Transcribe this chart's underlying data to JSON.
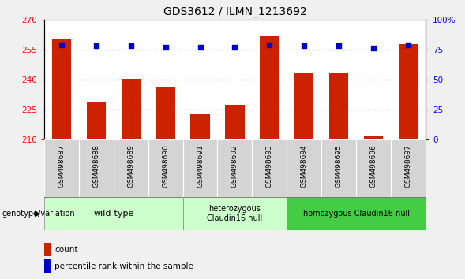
{
  "title": "GDS3612 / ILMN_1213692",
  "samples": [
    "GSM498687",
    "GSM498688",
    "GSM498689",
    "GSM498690",
    "GSM498691",
    "GSM498692",
    "GSM498693",
    "GSM498694",
    "GSM498695",
    "GSM498696",
    "GSM498697"
  ],
  "bar_values": [
    260.5,
    229.0,
    240.5,
    236.0,
    222.5,
    227.5,
    261.5,
    243.5,
    243.0,
    211.5,
    257.5
  ],
  "bar_color": "#cc2200",
  "dot_values": [
    79,
    78,
    78,
    77,
    77,
    77,
    79,
    78,
    78,
    76,
    79
  ],
  "dot_color": "#0000cc",
  "ylim_left": [
    210,
    270
  ],
  "ylim_right": [
    0,
    100
  ],
  "yticks_left": [
    210,
    225,
    240,
    255,
    270
  ],
  "yticks_right": [
    0,
    25,
    50,
    75,
    100
  ],
  "yticklabels_right": [
    "0",
    "25",
    "50",
    "75",
    "100%"
  ],
  "groups": [
    {
      "label": "wild-type",
      "start": 0,
      "end": 3,
      "color": "#ccffcc"
    },
    {
      "label": "heterozygous\nClaudin16 null",
      "start": 4,
      "end": 6,
      "color": "#ccffcc"
    },
    {
      "label": "homozygous Claudin16 null",
      "start": 7,
      "end": 10,
      "color": "#44dd44"
    }
  ],
  "genotype_label": "genotype/variation",
  "legend_count_label": "count",
  "legend_pct_label": "percentile rank within the sample",
  "bar_width": 0.55,
  "plot_bg": "#ffffff",
  "dotted_line_values": [
    225,
    240,
    255
  ],
  "title_fontsize": 10,
  "tick_fontsize": 7.5,
  "label_fontsize": 7.5,
  "col_bg": "#d4d4d4"
}
